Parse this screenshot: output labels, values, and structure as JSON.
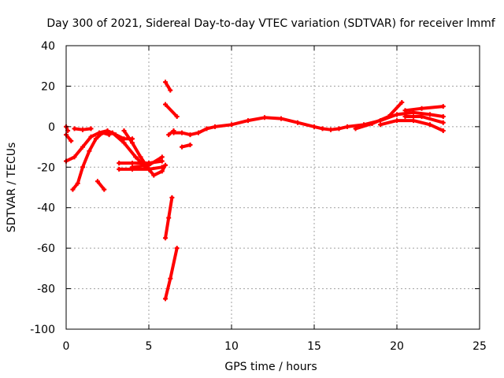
{
  "chart_data": {
    "type": "scatter",
    "title": "Day 300 of 2021, Sidereal Day-to-day VTEC variation (SDTVAR) for receiver lmmf",
    "xlabel": "GPS time / hours",
    "ylabel": "SDTVAR / TECUs",
    "xlim": [
      0,
      25
    ],
    "ylim": [
      -100,
      40
    ],
    "xticks": [
      0,
      5,
      10,
      15,
      20,
      25
    ],
    "yticks": [
      -100,
      -80,
      -60,
      -40,
      -20,
      0,
      20,
      40
    ],
    "xtick_labels": [
      "0",
      "5",
      "10",
      "15",
      "20",
      "25"
    ],
    "ytick_labels": [
      "-100",
      "-80",
      "-60",
      "-40",
      "-20",
      "0",
      "20",
      "40"
    ],
    "grid": true,
    "legend": "none",
    "color": "#ff0000",
    "series": [
      {
        "name": "main-trace",
        "points": [
          [
            6.5,
            -3
          ],
          [
            7,
            -3
          ],
          [
            7.5,
            -4
          ],
          [
            8,
            -3
          ],
          [
            8.5,
            -1
          ],
          [
            9,
            0
          ],
          [
            10,
            1
          ],
          [
            11,
            3
          ],
          [
            12,
            4.5
          ],
          [
            13,
            4
          ],
          [
            14,
            2
          ],
          [
            15,
            0
          ],
          [
            15.5,
            -1
          ],
          [
            16,
            -1.5
          ],
          [
            16.5,
            -1
          ],
          [
            17,
            0
          ],
          [
            18,
            1
          ],
          [
            19,
            3
          ],
          [
            20,
            6
          ],
          [
            21,
            7
          ],
          [
            22,
            6
          ],
          [
            22.8,
            5
          ]
        ]
      },
      {
        "name": "late-upper",
        "points": [
          [
            17.5,
            -1
          ],
          [
            18.5,
            1.5
          ],
          [
            19.5,
            5
          ],
          [
            20.3,
            12
          ]
        ]
      },
      {
        "name": "late-upper-2",
        "points": [
          [
            20.5,
            8
          ],
          [
            21.5,
            9
          ],
          [
            22.8,
            10
          ]
        ]
      },
      {
        "name": "late-lower",
        "points": [
          [
            19,
            1
          ],
          [
            20,
            3
          ],
          [
            21,
            3
          ],
          [
            22,
            1
          ],
          [
            22.8,
            -2
          ]
        ]
      },
      {
        "name": "late-lower-2",
        "points": [
          [
            20.5,
            5
          ],
          [
            21.5,
            5
          ],
          [
            22.8,
            2
          ]
        ]
      },
      {
        "name": "early-rise",
        "points": [
          [
            0,
            -17
          ],
          [
            0.5,
            -15
          ],
          [
            1,
            -10
          ],
          [
            1.5,
            -5
          ],
          [
            2,
            -3
          ],
          [
            2.5,
            -2
          ],
          [
            3,
            -4
          ],
          [
            3.5,
            -6
          ],
          [
            4,
            -6
          ]
        ]
      },
      {
        "name": "early-low",
        "points": [
          [
            0.4,
            -31
          ],
          [
            0.7,
            -28
          ],
          [
            1,
            -20
          ],
          [
            1.4,
            -12
          ],
          [
            1.8,
            -6
          ],
          [
            2.2,
            -3
          ],
          [
            2.6,
            -4
          ]
        ]
      },
      {
        "name": "early-dip",
        "points": [
          [
            0,
            -4
          ],
          [
            0.3,
            -7
          ]
        ]
      },
      {
        "name": "early-flat",
        "points": [
          [
            0.5,
            -1
          ],
          [
            1,
            -1.5
          ],
          [
            1.5,
            -1
          ]
        ]
      },
      {
        "name": "early-start",
        "points": [
          [
            0,
            0
          ],
          [
            0.1,
            -2
          ]
        ]
      },
      {
        "name": "short-segment",
        "points": [
          [
            1.9,
            -27
          ],
          [
            2.3,
            -31
          ]
        ]
      },
      {
        "name": "mid-arc",
        "points": [
          [
            3.5,
            -2
          ],
          [
            4,
            -8
          ],
          [
            4.5,
            -15
          ],
          [
            5,
            -21
          ],
          [
            5.3,
            -24
          ],
          [
            5.8,
            -22
          ],
          [
            6,
            -19
          ]
        ]
      },
      {
        "name": "mid-arc-2",
        "points": [
          [
            2.8,
            -3
          ],
          [
            3.5,
            -8
          ],
          [
            4.2,
            -15
          ],
          [
            4.8,
            -20
          ]
        ]
      },
      {
        "name": "mid-flat",
        "points": [
          [
            3.2,
            -18
          ],
          [
            4,
            -18
          ],
          [
            5,
            -18
          ],
          [
            5.8,
            -17
          ]
        ]
      },
      {
        "name": "mid-flat-2",
        "points": [
          [
            3.2,
            -21
          ],
          [
            4,
            -21
          ],
          [
            5,
            -21
          ],
          [
            5.8,
            -20
          ]
        ]
      },
      {
        "name": "mid-flat-3",
        "points": [
          [
            4,
            -20
          ],
          [
            5,
            -19
          ],
          [
            5.8,
            -15
          ]
        ]
      },
      {
        "name": "spike-high",
        "points": [
          [
            6,
            22
          ],
          [
            6.3,
            18
          ]
        ]
      },
      {
        "name": "spike-high-2",
        "points": [
          [
            6,
            11
          ],
          [
            6.7,
            5
          ]
        ]
      },
      {
        "name": "spike-low",
        "points": [
          [
            6,
            -55
          ],
          [
            6.2,
            -45
          ],
          [
            6.4,
            -35
          ]
        ]
      },
      {
        "name": "spike-low-2",
        "points": [
          [
            6,
            -85
          ],
          [
            6.3,
            -75
          ],
          [
            6.7,
            -60
          ]
        ]
      },
      {
        "name": "post-spike",
        "points": [
          [
            7,
            -10
          ],
          [
            7.5,
            -9
          ]
        ]
      },
      {
        "name": "post-spike-2",
        "points": [
          [
            6.2,
            -4
          ],
          [
            6.5,
            -2
          ]
        ]
      }
    ]
  }
}
